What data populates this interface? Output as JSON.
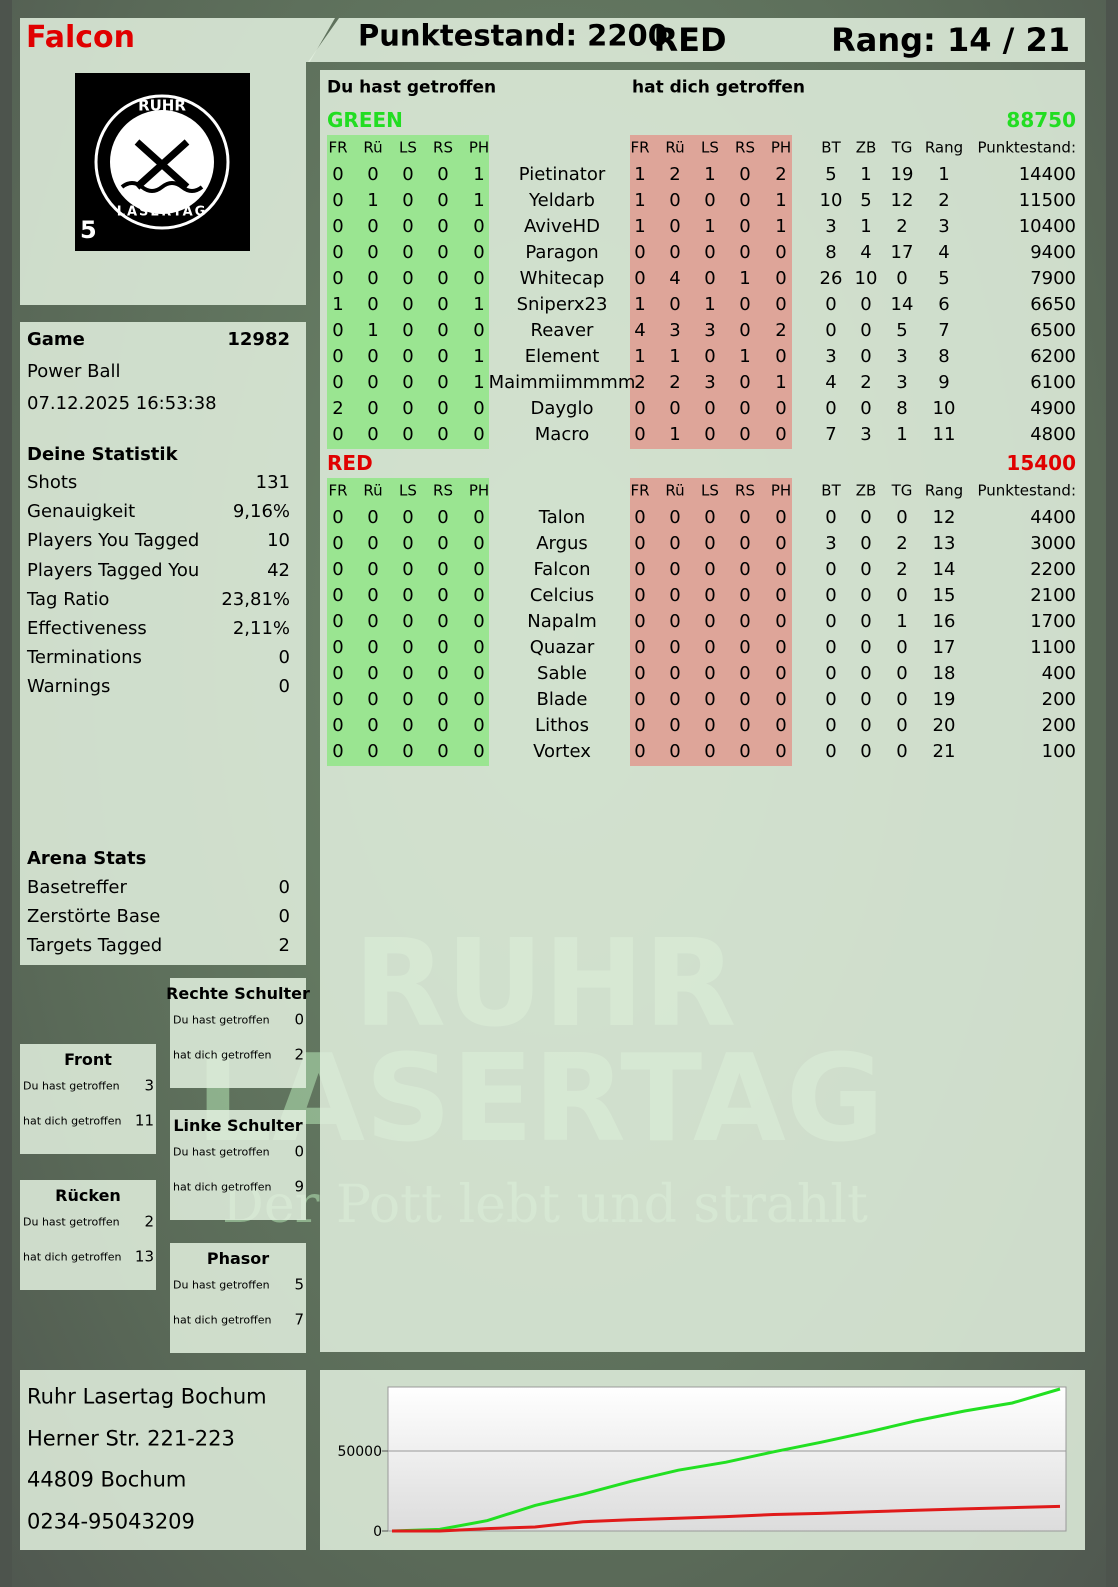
{
  "header": {
    "player": "Falcon",
    "score": "Punktestand: 2200",
    "team": "RED",
    "rank": "Rang: 14 / 21"
  },
  "logo": {
    "top": "RUHR",
    "bottom": "LASERTAG",
    "level": "5"
  },
  "game": {
    "label": "Game",
    "id": "12982",
    "mode": "Power Ball",
    "date": "07.12.2025 16:53:38"
  },
  "statistics": {
    "title": "Deine Statistik",
    "rows": [
      [
        "Shots",
        "131"
      ],
      [
        "Genauigkeit",
        "9,16%"
      ],
      [
        "Players You Tagged",
        "10"
      ],
      [
        "Players Tagged You",
        "42"
      ],
      [
        "Tag Ratio",
        "23,81%"
      ],
      [
        "Effectiveness",
        "2,11%"
      ],
      [
        "Terminations",
        "0"
      ],
      [
        "Warnings",
        "0"
      ]
    ]
  },
  "arena": {
    "title": "Arena Stats",
    "rows": [
      [
        "Basetreffer",
        "0"
      ],
      [
        "Zerstörte Base",
        "0"
      ],
      [
        "Targets Tagged",
        "2"
      ]
    ]
  },
  "zones": [
    {
      "title": "Rechte Schulter",
      "rows": [
        [
          "Du hast getroffen",
          "0"
        ],
        [
          "hat dich getroffen",
          "2"
        ]
      ]
    },
    {
      "title": "Front",
      "rows": [
        [
          "Du hast getroffen",
          "3"
        ],
        [
          "hat dich getroffen",
          "11"
        ]
      ]
    },
    {
      "title": "Linke Schulter",
      "rows": [
        [
          "Du hast getroffen",
          "0"
        ],
        [
          "hat dich getroffen",
          "9"
        ]
      ]
    },
    {
      "title": "Rücken",
      "rows": [
        [
          "Du hast getroffen",
          "2"
        ],
        [
          "hat dich getroffen",
          "13"
        ]
      ]
    },
    {
      "title": "Phasor",
      "rows": [
        [
          "Du hast getroffen",
          "5"
        ],
        [
          "hat dich getroffen",
          "7"
        ]
      ]
    }
  ],
  "table": {
    "you_hit": "Du hast getroffen",
    "hit_you": "hat dich getroffen",
    "hit_columns": [
      "FR",
      "Rü",
      "LS",
      "RS",
      "PH"
    ],
    "stat_columns": [
      "BT",
      "ZB",
      "TG",
      "Rang",
      "Punktestand:"
    ],
    "teams": [
      {
        "name": "GREEN",
        "score": "88750",
        "rows": [
          {
            "name": "Pietinator",
            "hit": [
              0,
              0,
              0,
              0,
              1
            ],
            "got": [
              1,
              2,
              1,
              0,
              2
            ],
            "stats": [
              5,
              1,
              19,
              1,
              14400
            ]
          },
          {
            "name": "Yeldarb",
            "hit": [
              0,
              1,
              0,
              0,
              1
            ],
            "got": [
              1,
              0,
              0,
              0,
              1
            ],
            "stats": [
              10,
              5,
              12,
              2,
              11500
            ]
          },
          {
            "name": "AviveHD",
            "hit": [
              0,
              0,
              0,
              0,
              0
            ],
            "got": [
              1,
              0,
              1,
              0,
              1
            ],
            "stats": [
              3,
              1,
              2,
              3,
              10400
            ]
          },
          {
            "name": "Paragon",
            "hit": [
              0,
              0,
              0,
              0,
              0
            ],
            "got": [
              0,
              0,
              0,
              0,
              0
            ],
            "stats": [
              8,
              4,
              17,
              4,
              9400
            ]
          },
          {
            "name": "Whitecap",
            "hit": [
              0,
              0,
              0,
              0,
              0
            ],
            "got": [
              0,
              4,
              0,
              1,
              0
            ],
            "stats": [
              26,
              10,
              0,
              5,
              7900
            ]
          },
          {
            "name": "Sniperx23",
            "hit": [
              1,
              0,
              0,
              0,
              1
            ],
            "got": [
              1,
              0,
              1,
              0,
              0
            ],
            "stats": [
              0,
              0,
              14,
              6,
              6650
            ]
          },
          {
            "name": "Reaver",
            "hit": [
              0,
              1,
              0,
              0,
              0
            ],
            "got": [
              4,
              3,
              3,
              0,
              2
            ],
            "stats": [
              0,
              0,
              5,
              7,
              6500
            ]
          },
          {
            "name": "Element",
            "hit": [
              0,
              0,
              0,
              0,
              1
            ],
            "got": [
              1,
              1,
              0,
              1,
              0
            ],
            "stats": [
              3,
              0,
              3,
              8,
              6200
            ]
          },
          {
            "name": "Maimmiimmmm",
            "hit": [
              0,
              0,
              0,
              0,
              1
            ],
            "got": [
              2,
              2,
              3,
              0,
              1
            ],
            "stats": [
              4,
              2,
              3,
              9,
              6100
            ]
          },
          {
            "name": "Dayglo",
            "hit": [
              2,
              0,
              0,
              0,
              0
            ],
            "got": [
              0,
              0,
              0,
              0,
              0
            ],
            "stats": [
              0,
              0,
              8,
              10,
              4900
            ]
          },
          {
            "name": "Macro",
            "hit": [
              0,
              0,
              0,
              0,
              0
            ],
            "got": [
              0,
              1,
              0,
              0,
              0
            ],
            "stats": [
              7,
              3,
              1,
              11,
              4800
            ]
          }
        ]
      },
      {
        "name": "RED",
        "score": "15400",
        "rows": [
          {
            "name": "Talon",
            "hit": [
              0,
              0,
              0,
              0,
              0
            ],
            "got": [
              0,
              0,
              0,
              0,
              0
            ],
            "stats": [
              0,
              0,
              0,
              12,
              4400
            ]
          },
          {
            "name": "Argus",
            "hit": [
              0,
              0,
              0,
              0,
              0
            ],
            "got": [
              0,
              0,
              0,
              0,
              0
            ],
            "stats": [
              3,
              0,
              2,
              13,
              3000
            ]
          },
          {
            "name": "Falcon",
            "hit": [
              0,
              0,
              0,
              0,
              0
            ],
            "got": [
              0,
              0,
              0,
              0,
              0
            ],
            "stats": [
              0,
              0,
              2,
              14,
              2200
            ]
          },
          {
            "name": "Celcius",
            "hit": [
              0,
              0,
              0,
              0,
              0
            ],
            "got": [
              0,
              0,
              0,
              0,
              0
            ],
            "stats": [
              0,
              0,
              0,
              15,
              2100
            ]
          },
          {
            "name": "Napalm",
            "hit": [
              0,
              0,
              0,
              0,
              0
            ],
            "got": [
              0,
              0,
              0,
              0,
              0
            ],
            "stats": [
              0,
              0,
              1,
              16,
              1700
            ]
          },
          {
            "name": "Quazar",
            "hit": [
              0,
              0,
              0,
              0,
              0
            ],
            "got": [
              0,
              0,
              0,
              0,
              0
            ],
            "stats": [
              0,
              0,
              0,
              17,
              1100
            ]
          },
          {
            "name": "Sable",
            "hit": [
              0,
              0,
              0,
              0,
              0
            ],
            "got": [
              0,
              0,
              0,
              0,
              0
            ],
            "stats": [
              0,
              0,
              0,
              18,
              400
            ]
          },
          {
            "name": "Blade",
            "hit": [
              0,
              0,
              0,
              0,
              0
            ],
            "got": [
              0,
              0,
              0,
              0,
              0
            ],
            "stats": [
              0,
              0,
              0,
              19,
              200
            ]
          },
          {
            "name": "Lithos",
            "hit": [
              0,
              0,
              0,
              0,
              0
            ],
            "got": [
              0,
              0,
              0,
              0,
              0
            ],
            "stats": [
              0,
              0,
              0,
              20,
              200
            ]
          },
          {
            "name": "Vortex",
            "hit": [
              0,
              0,
              0,
              0,
              0
            ],
            "got": [
              0,
              0,
              0,
              0,
              0
            ],
            "stats": [
              0,
              0,
              0,
              21,
              100
            ]
          }
        ]
      }
    ]
  },
  "address": [
    "Ruhr Lasertag Bochum",
    "Herner Str. 221-223",
    "44809 Bochum",
    "0234-95043209"
  ],
  "watermark": {
    "line1": "RUHR",
    "line2": "LASERTAG",
    "slogan": "Der Pott lebt und strahlt"
  },
  "chart_data": {
    "type": "line",
    "ylim": [
      0,
      90000
    ],
    "yticks": [
      0,
      50000
    ],
    "series": [
      {
        "name": "GREEN",
        "color": "#22e022",
        "values": [
          0,
          1000,
          6500,
          16000,
          23000,
          31000,
          38000,
          43000,
          49500,
          55500,
          62000,
          69000,
          75000,
          80000,
          88750
        ]
      },
      {
        "name": "RED",
        "color": "#e01a1a",
        "values": [
          0,
          0,
          1500,
          2500,
          5800,
          7000,
          8000,
          9000,
          10300,
          11000,
          12000,
          13000,
          13800,
          14600,
          15400
        ]
      }
    ]
  }
}
